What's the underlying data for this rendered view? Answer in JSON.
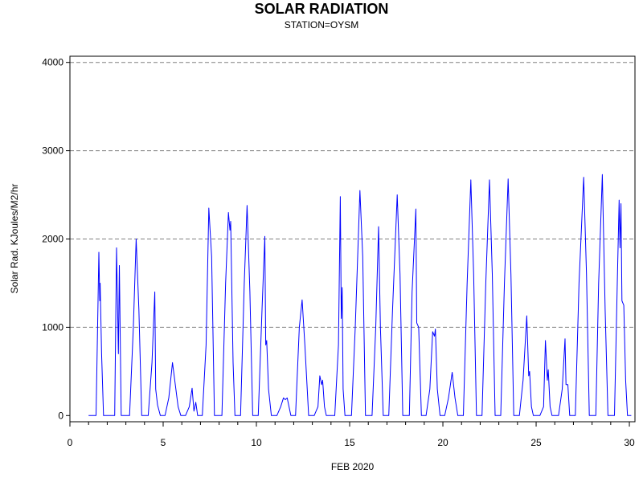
{
  "chart_data": {
    "type": "line",
    "title": "SOLAR RADIATION",
    "subtitle": "STATION=OYSM",
    "xlabel": "FEB 2020",
    "ylabel": "Solar Rad. KJoules/M2/hr",
    "xlim": [
      0,
      30.3
    ],
    "ylim": [
      -70,
      4070
    ],
    "x_ticks": [
      0,
      5,
      10,
      15,
      20,
      25,
      30
    ],
    "y_ticks": [
      0,
      1000,
      2000,
      3000,
      4000
    ],
    "grid": "horizontal-dashed",
    "series": [
      {
        "color": "#0000ff",
        "points": [
          [
            1.0,
            0
          ],
          [
            1.4,
            0
          ],
          [
            1.5,
            1200
          ],
          [
            1.55,
            1850
          ],
          [
            1.6,
            1300
          ],
          [
            1.62,
            1500
          ],
          [
            1.7,
            700
          ],
          [
            1.8,
            0
          ],
          [
            2.4,
            0
          ],
          [
            2.5,
            1900
          ],
          [
            2.6,
            700
          ],
          [
            2.65,
            1700
          ],
          [
            2.75,
            0
          ],
          [
            3.2,
            0
          ],
          [
            3.4,
            1000
          ],
          [
            3.55,
            2000
          ],
          [
            3.7,
            1200
          ],
          [
            3.85,
            0
          ],
          [
            4.2,
            0
          ],
          [
            4.4,
            600
          ],
          [
            4.55,
            1400
          ],
          [
            4.6,
            300
          ],
          [
            4.7,
            120
          ],
          [
            4.85,
            0
          ],
          [
            5.1,
            0
          ],
          [
            5.3,
            200
          ],
          [
            5.5,
            600
          ],
          [
            5.65,
            350
          ],
          [
            5.8,
            100
          ],
          [
            5.95,
            0
          ],
          [
            6.2,
            0
          ],
          [
            6.4,
            100
          ],
          [
            6.55,
            310
          ],
          [
            6.65,
            50
          ],
          [
            6.75,
            150
          ],
          [
            6.85,
            0
          ],
          [
            7.1,
            0
          ],
          [
            7.3,
            800
          ],
          [
            7.45,
            2350
          ],
          [
            7.6,
            1800
          ],
          [
            7.75,
            0
          ],
          [
            8.15,
            0
          ],
          [
            8.35,
            1500
          ],
          [
            8.5,
            2300
          ],
          [
            8.58,
            2100
          ],
          [
            8.62,
            2200
          ],
          [
            8.75,
            600
          ],
          [
            8.85,
            0
          ],
          [
            9.15,
            0
          ],
          [
            9.35,
            1500
          ],
          [
            9.5,
            2380
          ],
          [
            9.65,
            1400
          ],
          [
            9.8,
            0
          ],
          [
            10.1,
            0
          ],
          [
            10.3,
            1200
          ],
          [
            10.45,
            2030
          ],
          [
            10.5,
            800
          ],
          [
            10.55,
            850
          ],
          [
            10.65,
            300
          ],
          [
            10.8,
            0
          ],
          [
            11.1,
            0
          ],
          [
            11.3,
            100
          ],
          [
            11.45,
            200
          ],
          [
            11.55,
            180
          ],
          [
            11.65,
            200
          ],
          [
            11.75,
            100
          ],
          [
            11.85,
            0
          ],
          [
            12.1,
            0
          ],
          [
            12.3,
            1000
          ],
          [
            12.45,
            1310
          ],
          [
            12.6,
            800
          ],
          [
            12.8,
            0
          ],
          [
            13.1,
            0
          ],
          [
            13.3,
            100
          ],
          [
            13.4,
            450
          ],
          [
            13.5,
            350
          ],
          [
            13.55,
            400
          ],
          [
            13.65,
            100
          ],
          [
            13.75,
            0
          ],
          [
            14.2,
            0
          ],
          [
            14.4,
            800
          ],
          [
            14.5,
            2480
          ],
          [
            14.55,
            1100
          ],
          [
            14.6,
            1450
          ],
          [
            14.65,
            300
          ],
          [
            14.75,
            0
          ],
          [
            15.1,
            0
          ],
          [
            15.3,
            1000
          ],
          [
            15.55,
            2550
          ],
          [
            15.7,
            1800
          ],
          [
            15.85,
            0
          ],
          [
            16.2,
            0
          ],
          [
            16.4,
            1000
          ],
          [
            16.55,
            2140
          ],
          [
            16.65,
            1000
          ],
          [
            16.8,
            0
          ],
          [
            17.1,
            0
          ],
          [
            17.3,
            1200
          ],
          [
            17.55,
            2500
          ],
          [
            17.7,
            1600
          ],
          [
            17.85,
            0
          ],
          [
            18.2,
            0
          ],
          [
            18.35,
            1400
          ],
          [
            18.55,
            2340
          ],
          [
            18.6,
            1050
          ],
          [
            18.7,
            1000
          ],
          [
            18.85,
            0
          ],
          [
            19.1,
            0
          ],
          [
            19.3,
            300
          ],
          [
            19.45,
            950
          ],
          [
            19.55,
            900
          ],
          [
            19.6,
            980
          ],
          [
            19.7,
            300
          ],
          [
            19.85,
            0
          ],
          [
            20.1,
            0
          ],
          [
            20.3,
            200
          ],
          [
            20.5,
            490
          ],
          [
            20.65,
            200
          ],
          [
            20.8,
            0
          ],
          [
            21.1,
            0
          ],
          [
            21.3,
            1500
          ],
          [
            21.5,
            2670
          ],
          [
            21.65,
            1600
          ],
          [
            21.8,
            0
          ],
          [
            22.1,
            0
          ],
          [
            22.3,
            1500
          ],
          [
            22.5,
            2670
          ],
          [
            22.65,
            1600
          ],
          [
            22.8,
            0
          ],
          [
            23.1,
            0
          ],
          [
            23.3,
            1500
          ],
          [
            23.5,
            2680
          ],
          [
            23.65,
            1600
          ],
          [
            23.8,
            0
          ],
          [
            24.1,
            0
          ],
          [
            24.3,
            400
          ],
          [
            24.5,
            1130
          ],
          [
            24.6,
            450
          ],
          [
            24.65,
            500
          ],
          [
            24.75,
            100
          ],
          [
            24.85,
            0
          ],
          [
            25.2,
            0
          ],
          [
            25.4,
            100
          ],
          [
            25.5,
            850
          ],
          [
            25.6,
            400
          ],
          [
            25.65,
            520
          ],
          [
            25.75,
            100
          ],
          [
            25.85,
            0
          ],
          [
            26.2,
            0
          ],
          [
            26.4,
            300
          ],
          [
            26.55,
            870
          ],
          [
            26.6,
            350
          ],
          [
            26.7,
            350
          ],
          [
            26.8,
            0
          ],
          [
            27.1,
            0
          ],
          [
            27.3,
            1500
          ],
          [
            27.55,
            2700
          ],
          [
            27.7,
            1600
          ],
          [
            27.85,
            0
          ],
          [
            28.2,
            0
          ],
          [
            28.35,
            1500
          ],
          [
            28.55,
            2730
          ],
          [
            28.7,
            1200
          ],
          [
            28.85,
            0
          ],
          [
            29.2,
            0
          ],
          [
            29.35,
            1500
          ],
          [
            29.45,
            2440
          ],
          [
            29.5,
            1900
          ],
          [
            29.55,
            2400
          ],
          [
            29.6,
            1300
          ],
          [
            29.7,
            1250
          ],
          [
            29.8,
            400
          ],
          [
            29.9,
            0
          ],
          [
            30.1,
            0
          ]
        ]
      }
    ]
  }
}
